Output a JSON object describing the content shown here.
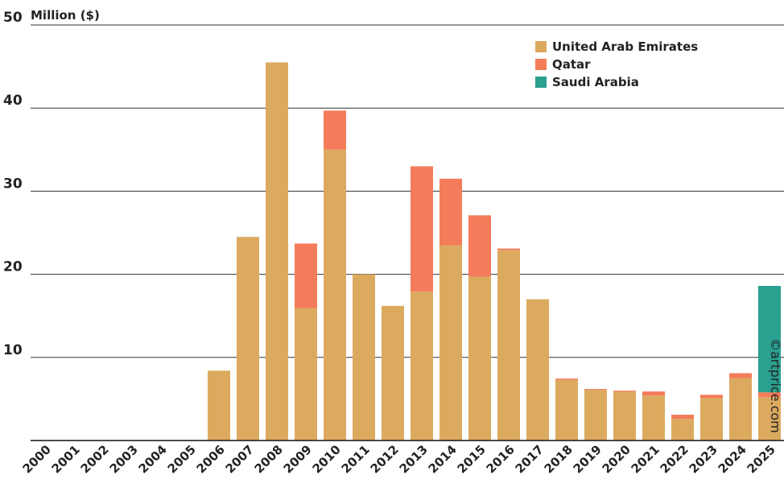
{
  "chart_data": {
    "type": "stacked_bar",
    "y_label": "Million ($)",
    "watermark": "©artprice.com",
    "categories": [
      "2000",
      "2001",
      "2002",
      "2003",
      "2004",
      "2005",
      "2006",
      "2007",
      "2008",
      "2009",
      "2010",
      "2011",
      "2012",
      "2013",
      "2014",
      "2015",
      "2016",
      "2017",
      "2018",
      "2019",
      "2020",
      "2021",
      "2022",
      "2023",
      "2024",
      "2025"
    ],
    "series": [
      {
        "name": "United Arab Emirates",
        "color": "#dcaa5f",
        "values": [
          0,
          0,
          0,
          0,
          0,
          0,
          8.4,
          24.5,
          45.5,
          15.9,
          35.0,
          20.0,
          16.2,
          17.9,
          23.5,
          19.7,
          22.9,
          17.0,
          7.3,
          6.1,
          5.9,
          5.4,
          2.6,
          5.1,
          7.5,
          5.2
        ]
      },
      {
        "name": "Qatar",
        "color": "#f47c5a",
        "values": [
          0,
          0,
          0,
          0,
          0,
          0,
          0,
          0,
          0,
          7.8,
          4.7,
          0,
          0,
          15.1,
          8.0,
          7.4,
          0.2,
          0,
          0.15,
          0.1,
          0.1,
          0.5,
          0.5,
          0.4,
          0.6,
          0.6
        ]
      },
      {
        "name": "Saudi Arabia",
        "color": "#2aa090",
        "values": [
          0,
          0,
          0,
          0,
          0,
          0,
          0,
          0,
          0,
          0,
          0,
          0,
          0,
          0,
          0,
          0,
          0,
          0,
          0,
          0,
          0,
          0,
          0,
          0,
          0,
          12.8
        ]
      }
    ],
    "ylim": [
      0,
      50
    ],
    "yticks": [
      10,
      20,
      30,
      40,
      50
    ],
    "grid": true,
    "legend": "top-right"
  }
}
